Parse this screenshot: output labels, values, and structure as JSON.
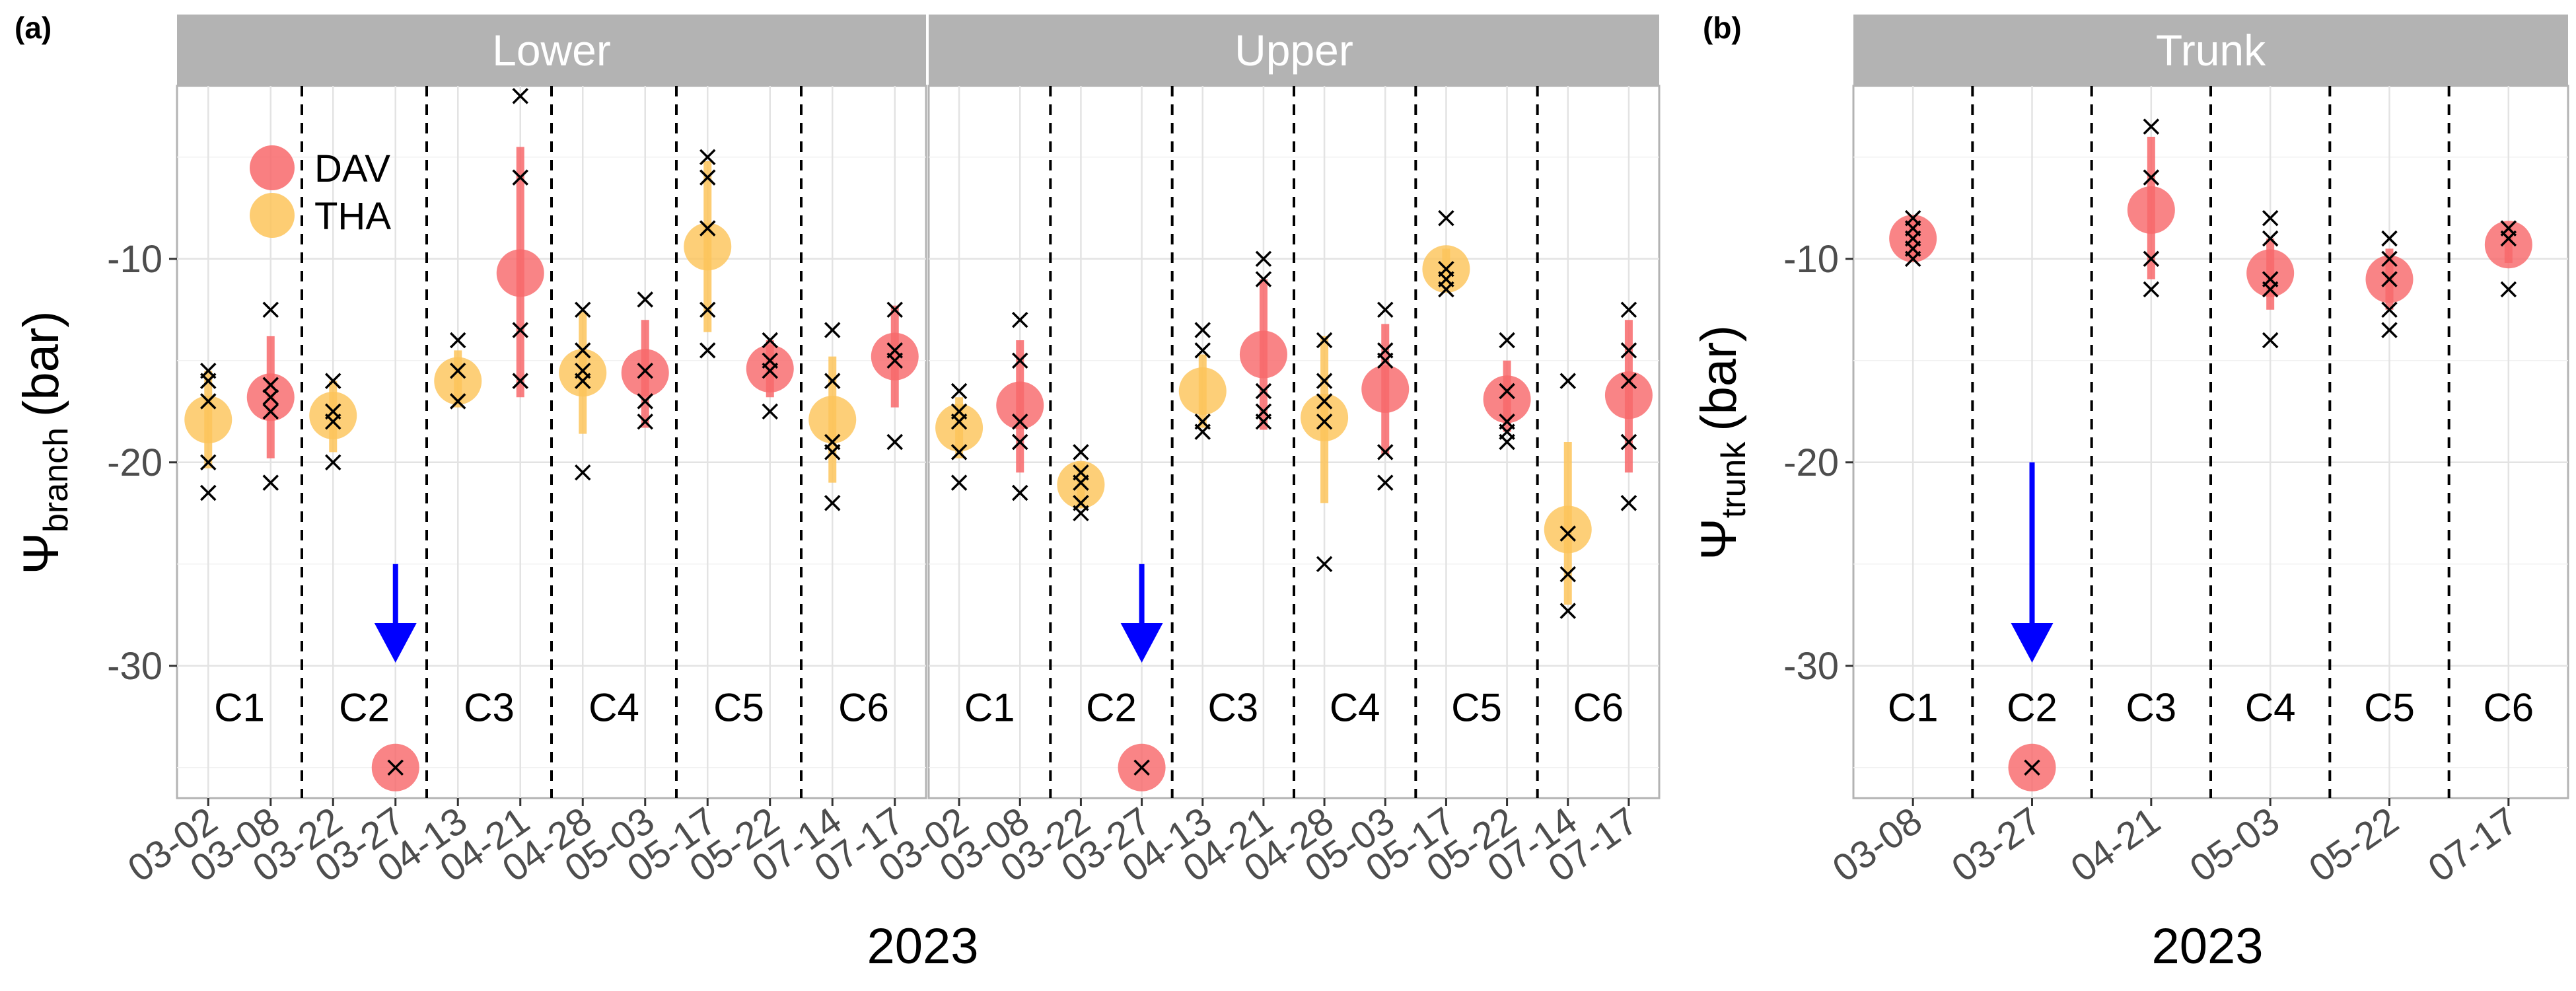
{
  "figure": {
    "panel_tags": [
      "(a)",
      "(b)"
    ],
    "xlabel": "2023",
    "left_ylabel": {
      "symbol": "Ψ",
      "subscript": "branch",
      "unit": "(bar)"
    },
    "right_ylabel": {
      "symbol": "Ψ",
      "subscript": "trunk",
      "unit": "(bar)"
    }
  },
  "legend": [
    {
      "label": "DAV",
      "color": "#f8696b"
    },
    {
      "label": "THA",
      "color": "#fdc45a"
    }
  ],
  "colors": {
    "DAV": "#f8696b",
    "THA": "#fdc45a",
    "arrow": "#0000ff",
    "point": "#000000"
  },
  "chart_data": [
    {
      "type": "scatter",
      "title": "Lower",
      "categories": [
        "03-02",
        "03-08",
        "03-22",
        "03-27",
        "04-13",
        "04-21",
        "04-28",
        "05-03",
        "05-17",
        "05-22",
        "07-14",
        "07-17"
      ],
      "ylim": [
        -36.5,
        -1.5
      ],
      "yticks": [
        -10,
        -20,
        -30
      ],
      "clusters": [
        "C1",
        "C2",
        "C3",
        "C4",
        "C5",
        "C6"
      ],
      "arrow": {
        "category": "03-27",
        "from": -25,
        "to": -29
      },
      "series": [
        {
          "name": "DAV",
          "points": [
            {
              "x": "03-08",
              "mean": -16.8,
              "low": -19.8,
              "high": -13.8,
              "obs": [
                -12.5,
                -16.2,
                -16.8,
                -17.5,
                -21
              ]
            },
            {
              "x": "03-27",
              "mean": -35,
              "obs": [
                -35
              ]
            },
            {
              "x": "04-21",
              "mean": -10.7,
              "low": -16.8,
              "high": -4.5,
              "obs": [
                -2,
                -6,
                -13.5,
                -16
              ]
            },
            {
              "x": "05-03",
              "mean": -15.6,
              "low": -18.3,
              "high": -13,
              "obs": [
                -12,
                -15.5,
                -17,
                -18
              ]
            },
            {
              "x": "05-22",
              "mean": -15.4,
              "low": -16.8,
              "high": -14,
              "obs": [
                -14,
                -15,
                -15.5,
                -17.5
              ]
            },
            {
              "x": "07-17",
              "mean": -14.8,
              "low": -17.3,
              "high": -12.3,
              "obs": [
                -12.5,
                -14.5,
                -15,
                -19
              ]
            }
          ]
        },
        {
          "name": "THA",
          "points": [
            {
              "x": "03-02",
              "mean": -17.9,
              "low": -20.3,
              "high": -15.5,
              "obs": [
                -15.5,
                -16,
                -17,
                -20,
                -21.5
              ]
            },
            {
              "x": "03-22",
              "mean": -17.7,
              "low": -19.5,
              "high": -16,
              "obs": [
                -16,
                -17.5,
                -18,
                -20
              ]
            },
            {
              "x": "04-13",
              "mean": -16,
              "low": -17.3,
              "high": -14.5,
              "obs": [
                -14,
                -15.5,
                -17
              ]
            },
            {
              "x": "04-28",
              "mean": -15.6,
              "low": -18.6,
              "high": -12.6,
              "obs": [
                -12.5,
                -14.5,
                -15.5,
                -16,
                -20.5
              ]
            },
            {
              "x": "05-17",
              "mean": -9.4,
              "low": -13.6,
              "high": -5.2,
              "obs": [
                -5,
                -6,
                -8.5,
                -12.5,
                -14.5
              ]
            },
            {
              "x": "07-14",
              "mean": -17.9,
              "low": -21,
              "high": -14.8,
              "obs": [
                -13.5,
                -16,
                -19,
                -19.5,
                -22
              ]
            }
          ]
        }
      ]
    },
    {
      "type": "scatter",
      "title": "Upper",
      "categories": [
        "03-02",
        "03-08",
        "03-22",
        "03-27",
        "04-13",
        "04-21",
        "04-28",
        "05-03",
        "05-17",
        "05-22",
        "07-14",
        "07-17"
      ],
      "ylim": [
        -36.5,
        -1.5
      ],
      "yticks": [
        -10,
        -20,
        -30
      ],
      "clusters": [
        "C1",
        "C2",
        "C3",
        "C4",
        "C5",
        "C6"
      ],
      "arrow": {
        "category": "03-27",
        "from": -25,
        "to": -29
      },
      "series": [
        {
          "name": "DAV",
          "points": [
            {
              "x": "03-08",
              "mean": -17.2,
              "low": -20.5,
              "high": -14,
              "obs": [
                -13,
                -15,
                -18,
                -19,
                -21.5
              ]
            },
            {
              "x": "03-27",
              "mean": -35,
              "obs": [
                -35
              ]
            },
            {
              "x": "04-21",
              "mean": -14.7,
              "low": -18.4,
              "high": -11,
              "obs": [
                -10,
                -11,
                -16.5,
                -17.5,
                -18
              ]
            },
            {
              "x": "05-03",
              "mean": -16.4,
              "low": -19.6,
              "high": -13.2,
              "obs": [
                -12.5,
                -14.5,
                -15,
                -19.5,
                -21
              ]
            },
            {
              "x": "05-22",
              "mean": -16.9,
              "low": -18.5,
              "high": -15,
              "obs": [
                -14,
                -16.5,
                -18,
                -18.5,
                -19
              ]
            },
            {
              "x": "07-17",
              "mean": -16.7,
              "low": -20.5,
              "high": -13,
              "obs": [
                -12.5,
                -14.5,
                -16,
                -19,
                -22
              ]
            }
          ]
        },
        {
          "name": "THA",
          "points": [
            {
              "x": "03-02",
              "mean": -18.3,
              "low": -19.8,
              "high": -16.8,
              "obs": [
                -16.5,
                -17.5,
                -18,
                -19.5,
                -21
              ]
            },
            {
              "x": "03-22",
              "mean": -21.1,
              "low": -22.2,
              "high": -20,
              "obs": [
                -19.5,
                -20.5,
                -21,
                -22,
                -22.5
              ]
            },
            {
              "x": "04-13",
              "mean": -16.5,
              "low": -18.3,
              "high": -14.7,
              "obs": [
                -13.5,
                -14.5,
                -18,
                -18.5
              ]
            },
            {
              "x": "04-28",
              "mean": -17.8,
              "low": -22,
              "high": -13.8,
              "obs": [
                -14,
                -16,
                -17,
                -18,
                -25
              ]
            },
            {
              "x": "05-17",
              "mean": -10.5,
              "low": -11.3,
              "high": -9.5,
              "obs": [
                -8,
                -10.5,
                -11,
                -11.5
              ]
            },
            {
              "x": "07-14",
              "mean": -23.3,
              "low": -27,
              "high": -19,
              "obs": [
                -16,
                -23.5,
                -25.5,
                -27.3
              ]
            }
          ]
        }
      ]
    },
    {
      "type": "scatter",
      "title": "Trunk",
      "categories": [
        "03-08",
        "03-27",
        "04-21",
        "05-03",
        "05-22",
        "07-17"
      ],
      "ylim": [
        -36.5,
        -1.5
      ],
      "yticks": [
        -10,
        -20,
        -30
      ],
      "clusters": [
        "C1",
        "C2",
        "C3",
        "C4",
        "C5",
        "C6"
      ],
      "arrow": {
        "category": "03-27",
        "from": -20,
        "to": -29
      },
      "series": [
        {
          "name": "DAV",
          "points": [
            {
              "x": "03-08",
              "mean": -9,
              "low": -10,
              "high": -8,
              "obs": [
                -8,
                -8.5,
                -9,
                -9.5,
                -10
              ]
            },
            {
              "x": "03-27",
              "mean": -35,
              "obs": [
                -35
              ]
            },
            {
              "x": "04-21",
              "mean": -7.6,
              "low": -11,
              "high": -4,
              "obs": [
                -3.5,
                -6,
                -10,
                -11.5
              ]
            },
            {
              "x": "05-03",
              "mean": -10.7,
              "low": -12.5,
              "high": -9,
              "obs": [
                -8,
                -9,
                -11,
                -11.5,
                -14
              ]
            },
            {
              "x": "05-22",
              "mean": -11,
              "low": -12.5,
              "high": -9.5,
              "obs": [
                -9,
                -10,
                -11,
                -12.5,
                -13.5
              ]
            },
            {
              "x": "07-17",
              "mean": -9.3,
              "low": -10.2,
              "high": -8.5,
              "obs": [
                -8.5,
                -9,
                -11.5
              ]
            }
          ]
        }
      ]
    }
  ]
}
